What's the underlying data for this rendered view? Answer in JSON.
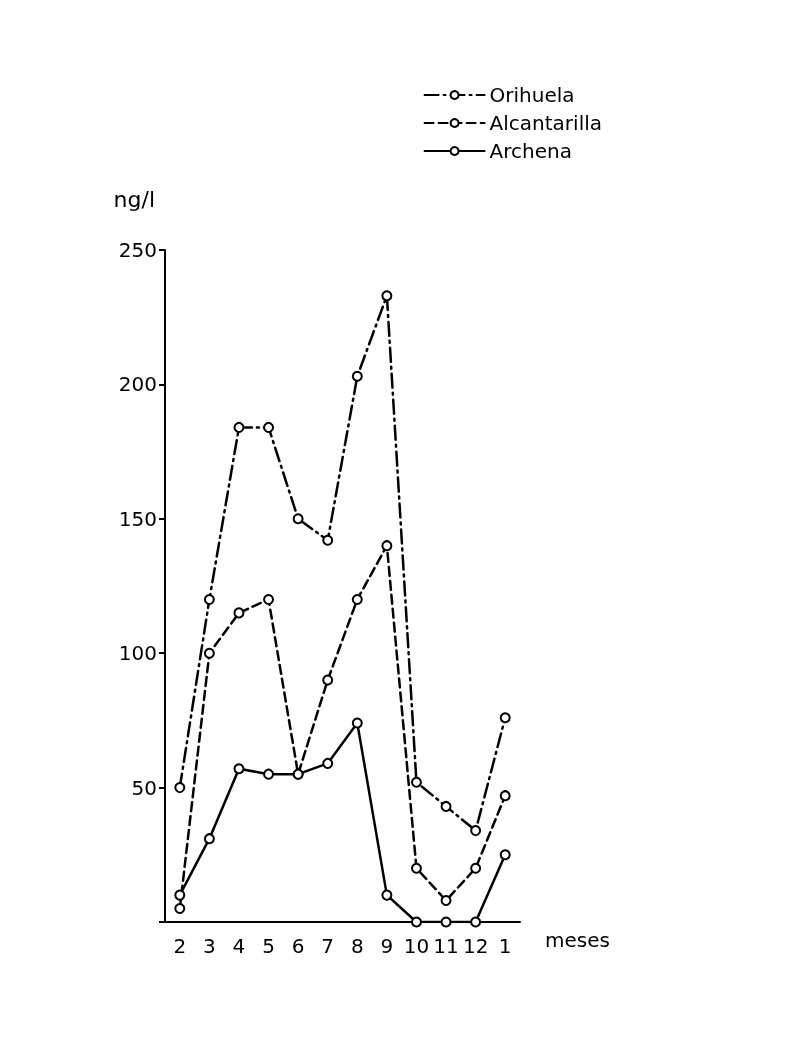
{
  "chart_data": {
    "type": "line",
    "xlabel": "meses",
    "ylabel": "ng/l",
    "categories": [
      "2",
      "3",
      "4",
      "5",
      "6",
      "7",
      "8",
      "9",
      "10",
      "11",
      "12",
      "1"
    ],
    "series": [
      {
        "name": "Orihuela",
        "color": "#000000",
        "line_style": "dashdot",
        "values": [
          50,
          120,
          184,
          184,
          150,
          142,
          203,
          233,
          52,
          43,
          34,
          76
        ]
      },
      {
        "name": "Alcantarilla",
        "color": "#000000",
        "line_style": "dashed",
        "values": [
          5,
          100,
          115,
          120,
          55,
          90,
          120,
          140,
          20,
          8,
          20,
          47
        ]
      },
      {
        "name": "Archena",
        "color": "#000000",
        "line_style": "solid",
        "values": [
          10,
          31,
          57,
          55,
          55,
          59,
          74,
          10,
          0,
          0,
          0,
          25
        ]
      }
    ],
    "ylim": [
      0,
      250
    ],
    "yticks": [
      {
        "value": 0,
        "label": null
      },
      50,
      100,
      150,
      200,
      250
    ],
    "marker": "circle",
    "legend": "top right",
    "grid": false
  }
}
